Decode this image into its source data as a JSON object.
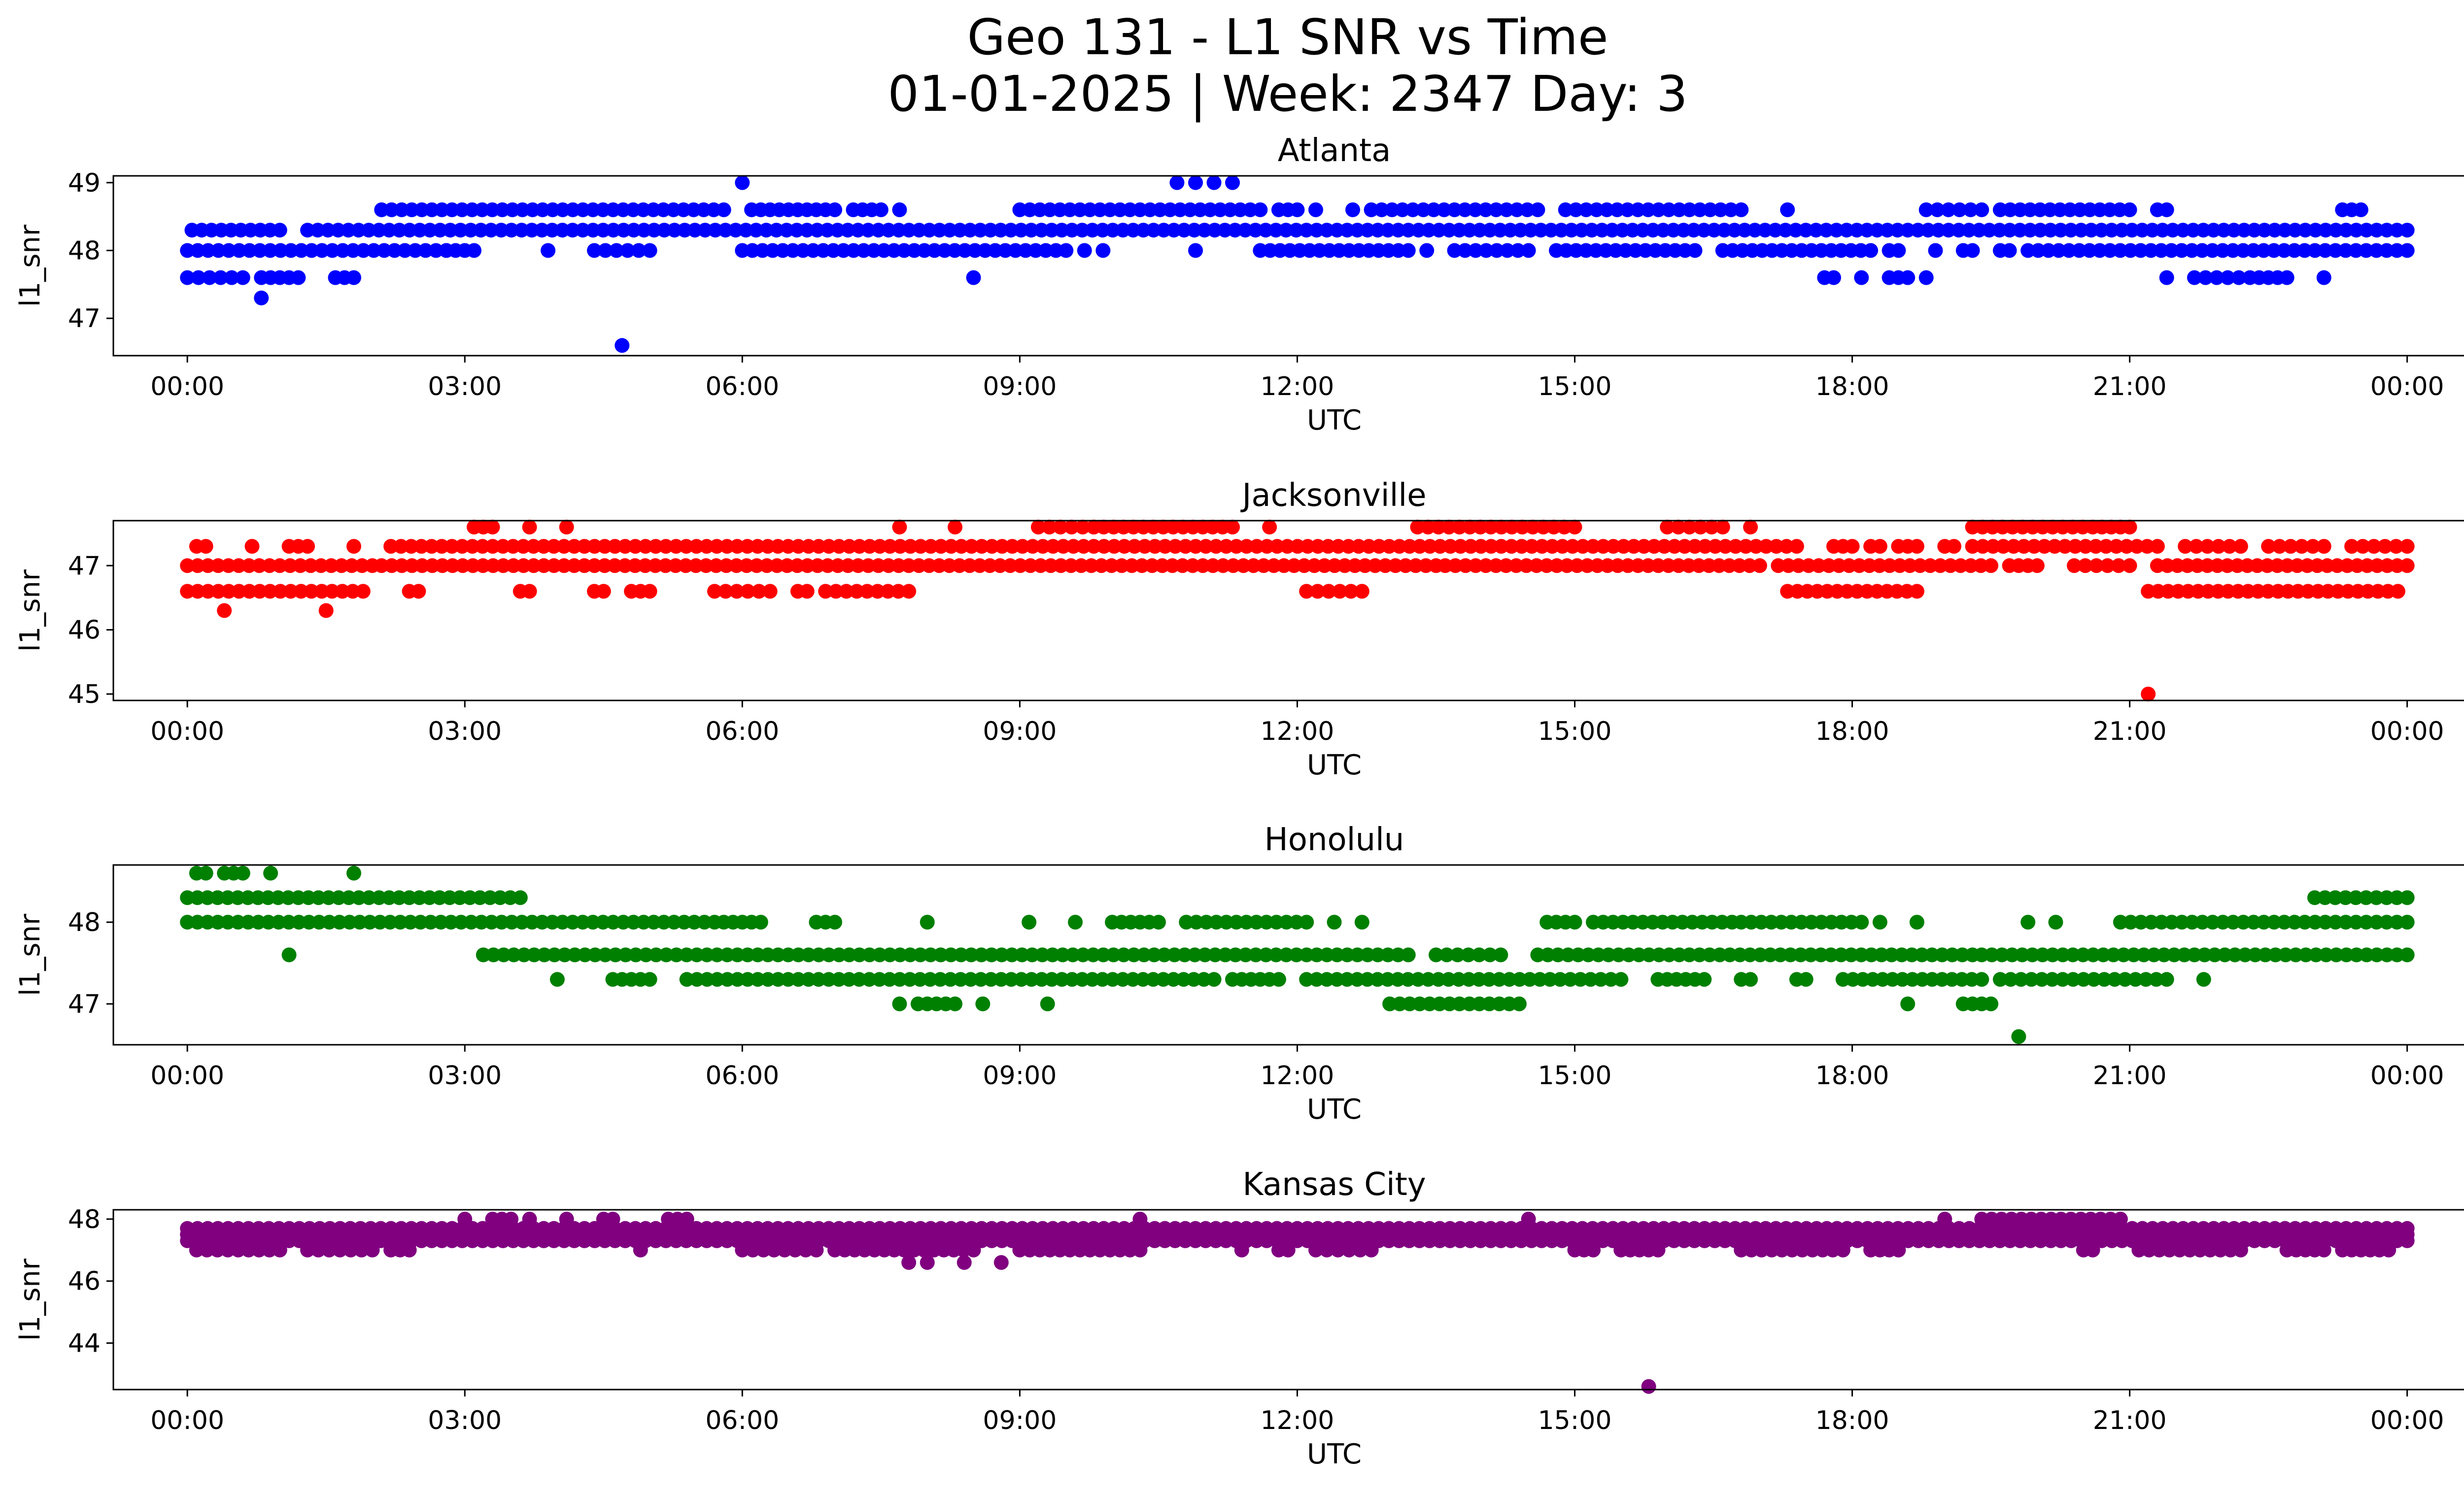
{
  "figure": {
    "title_line1": "Geo 131 - L1 SNR vs Time",
    "title_line2": "01-01-2025 | Week: 2347 Day: 3"
  },
  "chart_data": [
    {
      "type": "scatter",
      "title": "Atlanta",
      "xlabel": "UTC",
      "ylabel": "l1_snr",
      "color": "#0000ff",
      "xlim": [
        -0.8,
        25.6
      ],
      "ylim": [
        46.45,
        49.1
      ],
      "xticks": [
        "00:00",
        "03:00",
        "06:00",
        "09:00",
        "12:00",
        "15:00",
        "18:00",
        "21:00",
        "00:00"
      ],
      "yticks": [
        47,
        48,
        49
      ],
      "runs": [
        {
          "y": 48.3,
          "segments": [
            [
              0.05,
              1.0
            ],
            [
              1.3,
              24.0
            ]
          ]
        },
        {
          "y": 48.0,
          "segments": [
            [
              0.0,
              2.8
            ],
            [
              2.8,
              3.1
            ],
            [
              3.9,
              3.9
            ],
            [
              4.4,
              5.0
            ],
            [
              6.0,
              9.5
            ],
            [
              9.7,
              9.7
            ],
            [
              9.9,
              9.9
            ],
            [
              10.9,
              10.9
            ],
            [
              11.6,
              13.2
            ],
            [
              13.4,
              13.4
            ],
            [
              13.7,
              14.5
            ],
            [
              14.8,
              16.3
            ],
            [
              16.6,
              18.2
            ],
            [
              18.4,
              18.5
            ],
            [
              18.9,
              18.9
            ],
            [
              19.2,
              19.3
            ],
            [
              19.6,
              19.7
            ],
            [
              19.9,
              24.0
            ]
          ]
        },
        {
          "y": 48.6,
          "segments": [
            [
              2.1,
              5.8
            ],
            [
              6.1,
              6.6
            ],
            [
              6.6,
              7.0
            ],
            [
              7.2,
              7.5
            ],
            [
              7.7,
              7.7
            ],
            [
              9.0,
              11.6
            ],
            [
              11.8,
              12.0
            ],
            [
              12.2,
              12.2
            ],
            [
              12.6,
              12.6
            ],
            [
              12.8,
              14.6
            ],
            [
              14.9,
              16.8
            ],
            [
              17.3,
              17.3
            ],
            [
              18.8,
              19.4
            ],
            [
              19.6,
              21.0
            ],
            [
              21.3,
              21.4
            ],
            [
              23.3,
              23.5
            ]
          ]
        },
        {
          "y": 47.6,
          "segments": [
            [
              0.0,
              0.6
            ],
            [
              0.8,
              1.2
            ],
            [
              1.6,
              1.8
            ],
            [
              8.5,
              8.5
            ],
            [
              17.7,
              17.8
            ],
            [
              18.1,
              18.1
            ],
            [
              18.4,
              18.6
            ],
            [
              18.8,
              18.8
            ],
            [
              21.4,
              21.4
            ],
            [
              21.7,
              22.3
            ],
            [
              22.4,
              22.7
            ],
            [
              23.1,
              23.1
            ]
          ]
        }
      ],
      "points": [
        {
          "x": 6.0,
          "y": 49.0
        },
        {
          "x": 10.7,
          "y": 49.0
        },
        {
          "x": 10.9,
          "y": 49.0
        },
        {
          "x": 11.1,
          "y": 49.0
        },
        {
          "x": 11.3,
          "y": 49.0
        },
        {
          "x": 0.8,
          "y": 47.3
        },
        {
          "x": 4.7,
          "y": 46.6
        }
      ]
    },
    {
      "type": "scatter",
      "title": "Jacksonville",
      "xlabel": "UTC",
      "ylabel": "l1_snr",
      "color": "#ff0000",
      "xlim": [
        -0.8,
        25.6
      ],
      "ylim": [
        44.9,
        47.7
      ],
      "xticks": [
        "00:00",
        "03:00",
        "06:00",
        "09:00",
        "12:00",
        "15:00",
        "18:00",
        "21:00",
        "00:00"
      ],
      "yticks": [
        45,
        46,
        47
      ],
      "runs": [
        {
          "y": 47.0,
          "segments": [
            [
              0.0,
              2.0
            ],
            [
              2.1,
              13.5
            ],
            [
              13.6,
              17.0
            ],
            [
              17.2,
              19.5
            ],
            [
              19.7,
              20.0
            ],
            [
              20.4,
              21.0
            ],
            [
              21.3,
              24.0
            ]
          ]
        },
        {
          "y": 46.6,
          "segments": [
            [
              0.0,
              1.9
            ],
            [
              2.4,
              2.5
            ],
            [
              3.6,
              3.7
            ],
            [
              4.4,
              4.5
            ],
            [
              4.8,
              5.0
            ],
            [
              5.7,
              6.3
            ],
            [
              6.6,
              6.7
            ],
            [
              6.9,
              7.8
            ],
            [
              12.1,
              12.7
            ],
            [
              17.3,
              18.7
            ],
            [
              21.2,
              23.9
            ]
          ]
        },
        {
          "y": 47.3,
          "segments": [
            [
              0.1,
              0.2
            ],
            [
              0.7,
              0.7
            ],
            [
              1.1,
              1.3
            ],
            [
              1.8,
              1.8
            ],
            [
              2.2,
              17.4
            ],
            [
              17.8,
              18.0
            ],
            [
              18.2,
              18.3
            ],
            [
              18.5,
              18.7
            ],
            [
              19.0,
              19.1
            ],
            [
              19.3,
              21.3
            ],
            [
              21.6,
              22.2
            ],
            [
              22.5,
              23.1
            ],
            [
              23.4,
              24.0
            ]
          ]
        },
        {
          "y": 47.6,
          "segments": [
            [
              3.1,
              3.3
            ],
            [
              3.7,
              3.7
            ],
            [
              4.1,
              4.1
            ],
            [
              7.7,
              7.7
            ],
            [
              8.3,
              8.3
            ],
            [
              9.2,
              9.8
            ],
            [
              9.8,
              11.3
            ],
            [
              11.7,
              11.7
            ],
            [
              13.3,
              15.0
            ],
            [
              16.0,
              16.6
            ],
            [
              16.9,
              16.9
            ],
            [
              19.3,
              20.6
            ],
            [
              20.7,
              21.0
            ]
          ]
        }
      ],
      "points": [
        {
          "x": 0.4,
          "y": 46.3
        },
        {
          "x": 1.5,
          "y": 46.3
        },
        {
          "x": 21.2,
          "y": 45.0
        }
      ]
    },
    {
      "type": "scatter",
      "title": "Honolulu",
      "xlabel": "UTC",
      "ylabel": "l1_snr",
      "color": "#008000",
      "xlim": [
        -0.8,
        25.6
      ],
      "ylim": [
        46.5,
        48.7
      ],
      "xticks": [
        "00:00",
        "03:00",
        "06:00",
        "09:00",
        "12:00",
        "15:00",
        "18:00",
        "21:00",
        "00:00"
      ],
      "yticks": [
        47,
        48
      ],
      "runs": [
        {
          "y": 48.3,
          "segments": [
            [
              0.0,
              3.6
            ],
            [
              23.0,
              24.0
            ]
          ]
        },
        {
          "y": 48.0,
          "segments": [
            [
              0.0,
              5.7
            ],
            [
              5.8,
              6.2
            ],
            [
              6.8,
              7.0
            ],
            [
              8.0,
              8.0
            ],
            [
              9.1,
              9.1
            ],
            [
              9.6,
              9.6
            ],
            [
              10.0,
              10.4
            ],
            [
              10.5,
              10.5
            ],
            [
              10.8,
              12.1
            ],
            [
              12.4,
              12.4
            ],
            [
              12.7,
              12.7
            ],
            [
              14.7,
              15.0
            ],
            [
              15.2,
              16.7
            ],
            [
              16.8,
              18.1
            ],
            [
              18.3,
              18.3
            ],
            [
              18.7,
              18.7
            ],
            [
              19.9,
              19.9
            ],
            [
              20.2,
              20.2
            ],
            [
              20.9,
              24.0
            ]
          ]
        },
        {
          "y": 47.6,
          "segments": [
            [
              1.1,
              1.1
            ],
            [
              3.2,
              13.2
            ],
            [
              13.5,
              14.2
            ],
            [
              14.6,
              19.3
            ],
            [
              19.4,
              24.0
            ]
          ]
        },
        {
          "y": 47.3,
          "segments": [
            [
              4.0,
              4.0
            ],
            [
              4.6,
              5.0
            ],
            [
              5.4,
              11.1
            ],
            [
              11.3,
              11.8
            ],
            [
              12.1,
              15.5
            ],
            [
              15.9,
              16.4
            ],
            [
              16.8,
              16.9
            ],
            [
              17.4,
              17.5
            ],
            [
              17.9,
              19.4
            ],
            [
              19.6,
              21.4
            ],
            [
              21.8,
              21.8
            ]
          ]
        },
        {
          "y": 47.0,
          "segments": [
            [
              7.7,
              7.7
            ],
            [
              7.9,
              8.3
            ],
            [
              8.6,
              8.6
            ],
            [
              9.3,
              9.3
            ],
            [
              13.0,
              14.4
            ],
            [
              18.6,
              18.6
            ],
            [
              19.2,
              19.5
            ]
          ]
        },
        {
          "y": 48.6,
          "segments": [
            [
              0.1,
              0.2
            ],
            [
              0.4,
              0.6
            ],
            [
              0.9,
              0.9
            ],
            [
              1.8,
              1.8
            ]
          ]
        }
      ],
      "points": [
        {
          "x": 19.8,
          "y": 46.6
        }
      ]
    },
    {
      "type": "scatter",
      "title": "Kansas City",
      "xlabel": "UTC",
      "ylabel": "l1_snr",
      "color": "#800080",
      "xlim": [
        -0.8,
        25.6
      ],
      "ylim": [
        42.5,
        48.3
      ],
      "xticks": [
        "00:00",
        "03:00",
        "06:00",
        "09:00",
        "12:00",
        "15:00",
        "18:00",
        "21:00",
        "00:00"
      ],
      "yticks": [
        44,
        46,
        48
      ],
      "runs": [
        {
          "y": 47.5,
          "segments": [
            [
              0.0,
              24.0
            ]
          ]
        },
        {
          "y": 47.3,
          "segments": [
            [
              0.0,
              24.0
            ]
          ]
        },
        {
          "y": 47.0,
          "segments": [
            [
              0.1,
              1.0
            ],
            [
              1.3,
              2.0
            ],
            [
              2.2,
              2.4
            ],
            [
              4.9,
              4.9
            ],
            [
              6.0,
              6.8
            ],
            [
              7.0,
              8.5
            ],
            [
              9.0,
              10.3
            ],
            [
              11.4,
              11.4
            ],
            [
              11.8,
              11.9
            ],
            [
              12.2,
              12.8
            ],
            [
              15.0,
              15.2
            ],
            [
              15.5,
              15.9
            ],
            [
              16.8,
              17.9
            ],
            [
              18.2,
              18.5
            ],
            [
              20.5,
              20.6
            ],
            [
              21.1,
              22.2
            ],
            [
              22.7,
              23.1
            ],
            [
              23.3,
              23.8
            ]
          ]
        },
        {
          "y": 47.7,
          "segments": [
            [
              0.0,
              24.0
            ]
          ]
        },
        {
          "y": 48.0,
          "segments": [
            [
              3.0,
              3.0
            ],
            [
              3.3,
              3.5
            ],
            [
              3.7,
              3.7
            ],
            [
              4.1,
              4.1
            ],
            [
              4.5,
              4.6
            ],
            [
              5.2,
              5.4
            ],
            [
              10.3,
              10.3
            ],
            [
              14.5,
              14.5
            ],
            [
              19.0,
              19.0
            ],
            [
              19.4,
              20.9
            ]
          ]
        }
      ],
      "points": [
        {
          "x": 7.8,
          "y": 46.6
        },
        {
          "x": 8.0,
          "y": 46.6
        },
        {
          "x": 8.4,
          "y": 46.6
        },
        {
          "x": 8.8,
          "y": 46.6
        },
        {
          "x": 15.8,
          "y": 42.6
        }
      ]
    }
  ]
}
